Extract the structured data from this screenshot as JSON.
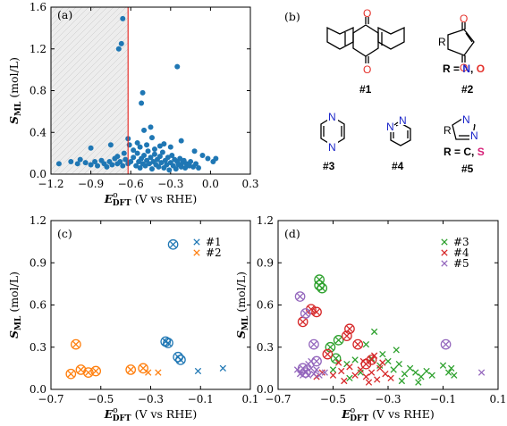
{
  "colors": {
    "blue": "#1f77b4",
    "orange": "#ff7f0e",
    "green": "#2ca02c",
    "red": "#d62728",
    "purple": "#9467bd",
    "cutoff": "#e4312b",
    "shade": "#e6e6e6",
    "atomO": "#e4312b",
    "atomN": "#1a24c9",
    "atomS": "#d61f77"
  },
  "axis_text": {
    "ylabel_main": "S",
    "ylabel_sub": "ML",
    "ylabel_unit": " (mol/L)",
    "xlabel_main": "E",
    "xlabel_sup": "o",
    "xlabel_sub": "DFT",
    "xlabel_unit": " (V vs RHE)"
  },
  "panels": {
    "a": "(a)",
    "b": "(b)",
    "c": "(c)",
    "d": "(d)"
  },
  "molecules": {
    "m1": {
      "label": "#1",
      "atom": "O"
    },
    "m2": {
      "label": "#2",
      "atom": "O",
      "sub": "R",
      "r_text": "R = ",
      "r_n": "N",
      "r_comma": ", ",
      "r_o": "O"
    },
    "m3": {
      "label": "#3",
      "atom": "N"
    },
    "m4": {
      "label": "#4",
      "atom": "N"
    },
    "m5": {
      "label": "#5",
      "atom": "N",
      "sub": "R",
      "r_text": "R = C, ",
      "r_s": "S"
    }
  },
  "chart_data": [
    {
      "panel": "a",
      "type": "scatter",
      "xlim": [
        -1.2,
        0.3
      ],
      "ylim": [
        0,
        1.6
      ],
      "xticks": [
        -1.2,
        -0.9,
        -0.6,
        -0.3,
        0.0,
        0.3
      ],
      "xtick_labels": [
        "−1.2",
        "−0.9",
        "−0.6",
        "−0.3",
        "0.0",
        "0.3"
      ],
      "yticks": [
        0.0,
        0.4,
        0.8,
        1.2,
        1.6
      ],
      "ytick_labels": [
        "0.0",
        "0.4",
        "0.8",
        "1.2",
        "1.6"
      ],
      "cutoff_x": -0.62,
      "shaded_range": [
        -1.2,
        -0.62
      ],
      "series": [
        {
          "color": "blue",
          "marker": "dot",
          "points": [
            [
              -1.14,
              0.1
            ],
            [
              -0.66,
              1.49
            ],
            [
              -0.67,
              1.25
            ],
            [
              -0.69,
              1.2
            ],
            [
              -0.25,
              1.03
            ],
            [
              -0.51,
              0.78
            ],
            [
              -0.52,
              0.68
            ],
            [
              -0.45,
              0.45
            ],
            [
              -0.5,
              0.42
            ],
            [
              -0.44,
              0.35
            ],
            [
              -0.62,
              0.34
            ],
            [
              -0.9,
              0.25
            ],
            [
              -0.75,
              0.28
            ],
            [
              -0.61,
              0.28
            ],
            [
              -0.53,
              0.26
            ],
            [
              -0.38,
              0.27
            ],
            [
              -0.3,
              0.26
            ],
            [
              -0.22,
              0.32
            ],
            [
              -0.12,
              0.22
            ],
            [
              -0.06,
              0.18
            ],
            [
              -0.02,
              0.15
            ],
            [
              0.02,
              0.12
            ],
            [
              0.04,
              0.15
            ],
            [
              -1.05,
              0.12
            ],
            [
              -1.0,
              0.1
            ],
            [
              -0.98,
              0.14
            ],
            [
              -0.94,
              0.11
            ],
            [
              -0.9,
              0.09
            ],
            [
              -0.87,
              0.12
            ],
            [
              -0.85,
              0.08
            ],
            [
              -0.82,
              0.13
            ],
            [
              -0.8,
              0.1
            ],
            [
              -0.78,
              0.07
            ],
            [
              -0.76,
              0.12
            ],
            [
              -0.74,
              0.09
            ],
            [
              -0.72,
              0.15
            ],
            [
              -0.7,
              0.1
            ],
            [
              -0.68,
              0.12
            ],
            [
              -0.66,
              0.08
            ],
            [
              -0.64,
              0.14
            ],
            [
              -0.62,
              0.1
            ],
            [
              -0.6,
              0.12
            ],
            [
              -0.58,
              0.16
            ],
            [
              -0.56,
              0.08
            ],
            [
              -0.55,
              0.2
            ],
            [
              -0.54,
              0.12
            ],
            [
              -0.53,
              0.06
            ],
            [
              -0.52,
              0.15
            ],
            [
              -0.51,
              0.1
            ],
            [
              -0.5,
              0.18
            ],
            [
              -0.49,
              0.08
            ],
            [
              -0.48,
              0.13
            ],
            [
              -0.47,
              0.22
            ],
            [
              -0.46,
              0.1
            ],
            [
              -0.45,
              0.16
            ],
            [
              -0.44,
              0.05
            ],
            [
              -0.43,
              0.12
            ],
            [
              -0.42,
              0.19
            ],
            [
              -0.41,
              0.09
            ],
            [
              -0.4,
              0.14
            ],
            [
              -0.39,
              0.07
            ],
            [
              -0.38,
              0.17
            ],
            [
              -0.37,
              0.11
            ],
            [
              -0.36,
              0.21
            ],
            [
              -0.35,
              0.06
            ],
            [
              -0.34,
              0.13
            ],
            [
              -0.33,
              0.09
            ],
            [
              -0.32,
              0.16
            ],
            [
              -0.31,
              0.04
            ],
            [
              -0.3,
              0.11
            ],
            [
              -0.29,
              0.18
            ],
            [
              -0.28,
              0.08
            ],
            [
              -0.27,
              0.14
            ],
            [
              -0.26,
              0.05
            ],
            [
              -0.25,
              0.12
            ],
            [
              -0.24,
              0.09
            ],
            [
              -0.23,
              0.15
            ],
            [
              -0.22,
              0.07
            ],
            [
              -0.21,
              0.11
            ],
            [
              -0.2,
              0.13
            ],
            [
              -0.19,
              0.06
            ],
            [
              -0.18,
              0.1
            ],
            [
              -0.16,
              0.08
            ],
            [
              -0.15,
              0.12
            ],
            [
              -0.13,
              0.07
            ],
            [
              -0.11,
              0.1
            ],
            [
              -0.09,
              0.06
            ],
            [
              -0.55,
              0.3
            ],
            [
              -0.58,
              0.23
            ],
            [
              -0.48,
              0.28
            ],
            [
              -0.42,
              0.24
            ],
            [
              -0.35,
              0.29
            ],
            [
              -0.65,
              0.2
            ],
            [
              -0.7,
              0.17
            ]
          ]
        }
      ]
    },
    {
      "panel": "c",
      "type": "scatter",
      "xlim": [
        -0.7,
        0.1
      ],
      "ylim": [
        0,
        1.2
      ],
      "xticks": [
        -0.7,
        -0.5,
        -0.3,
        -0.1,
        0.1
      ],
      "xtick_labels": [
        "−0.7",
        "−0.5",
        "−0.3",
        "−0.1",
        "0.1"
      ],
      "yticks": [
        0.0,
        0.3,
        0.6,
        0.9,
        1.2
      ],
      "ytick_labels": [
        "0.0",
        "0.3",
        "0.6",
        "0.9",
        "1.2"
      ],
      "series": [
        {
          "name": "#1",
          "color": "blue",
          "points": [
            [
              -0.21,
              1.03,
              1
            ],
            [
              -0.24,
              0.34,
              1
            ],
            [
              -0.23,
              0.33,
              1
            ],
            [
              -0.19,
              0.23,
              1
            ],
            [
              -0.18,
              0.21,
              1
            ],
            [
              -0.11,
              0.13,
              0
            ],
            [
              -0.01,
              0.15,
              0
            ]
          ]
        },
        {
          "name": "#2",
          "color": "orange",
          "points": [
            [
              -0.6,
              0.32,
              1
            ],
            [
              -0.58,
              0.14,
              1
            ],
            [
              -0.62,
              0.11,
              1
            ],
            [
              -0.55,
              0.12,
              1
            ],
            [
              -0.52,
              0.13,
              1
            ],
            [
              -0.38,
              0.14,
              1
            ],
            [
              -0.33,
              0.15,
              1
            ],
            [
              -0.31,
              0.12,
              0
            ],
            [
              -0.27,
              0.12,
              0
            ]
          ]
        }
      ]
    },
    {
      "panel": "d",
      "type": "scatter",
      "xlim": [
        -0.7,
        0.1
      ],
      "ylim": [
        0,
        1.2
      ],
      "xticks": [
        -0.7,
        -0.5,
        -0.3,
        -0.1,
        0.1
      ],
      "xtick_labels": [
        "−0.7",
        "−0.5",
        "−0.3",
        "−0.1",
        "0.1"
      ],
      "yticks": [
        0.0,
        0.3,
        0.6,
        0.9,
        1.2
      ],
      "ytick_labels": [
        "0.0",
        "0.3",
        "0.6",
        "0.9",
        "1.2"
      ],
      "series": [
        {
          "name": "#3",
          "color": "green",
          "points": [
            [
              -0.55,
              0.78,
              1
            ],
            [
              -0.55,
              0.74,
              1
            ],
            [
              -0.54,
              0.72,
              1
            ],
            [
              -0.48,
              0.35,
              1
            ],
            [
              -0.51,
              0.3,
              1
            ],
            [
              -0.49,
              0.22,
              1
            ],
            [
              -0.35,
              0.41,
              0
            ],
            [
              -0.38,
              0.32,
              0
            ],
            [
              -0.32,
              0.25,
              0
            ],
            [
              -0.3,
              0.2,
              0
            ],
            [
              -0.28,
              0.14,
              0
            ],
            [
              -0.26,
              0.18,
              0
            ],
            [
              -0.24,
              0.11,
              0
            ],
            [
              -0.22,
              0.15,
              0
            ],
            [
              -0.2,
              0.12,
              0
            ],
            [
              -0.18,
              0.09,
              0
            ],
            [
              -0.16,
              0.13,
              0
            ],
            [
              -0.14,
              0.1,
              0
            ],
            [
              -0.27,
              0.28,
              0
            ],
            [
              -0.33,
              0.17,
              0
            ],
            [
              -0.36,
              0.22,
              0
            ],
            [
              -0.42,
              0.21,
              0
            ],
            [
              -0.45,
              0.18,
              0
            ],
            [
              -0.4,
              0.12,
              0
            ],
            [
              -0.1,
              0.17,
              0
            ],
            [
              -0.08,
              0.12,
              0
            ],
            [
              -0.07,
              0.15,
              0
            ],
            [
              -0.06,
              0.1,
              0
            ],
            [
              -0.25,
              0.06,
              0
            ],
            [
              -0.19,
              0.05,
              0
            ],
            [
              -0.5,
              0.14,
              0
            ],
            [
              -0.44,
              0.08,
              0
            ]
          ]
        },
        {
          "name": "#4",
          "color": "red",
          "points": [
            [
              -0.61,
              0.48,
              1
            ],
            [
              -0.58,
              0.57,
              1
            ],
            [
              -0.56,
              0.55,
              1
            ],
            [
              -0.44,
              0.43,
              1
            ],
            [
              -0.45,
              0.38,
              1
            ],
            [
              -0.41,
              0.32,
              1
            ],
            [
              -0.52,
              0.25,
              1
            ],
            [
              -0.36,
              0.21,
              1
            ],
            [
              -0.38,
              0.18,
              1
            ],
            [
              -0.47,
              0.13,
              0
            ],
            [
              -0.44,
              0.16,
              0
            ],
            [
              -0.42,
              0.1,
              0
            ],
            [
              -0.4,
              0.14,
              0
            ],
            [
              -0.38,
              0.09,
              0
            ],
            [
              -0.36,
              0.12,
              0
            ],
            [
              -0.34,
              0.07,
              0
            ],
            [
              -0.33,
              0.15,
              0
            ],
            [
              -0.31,
              0.11,
              0
            ],
            [
              -0.29,
              0.08,
              0
            ],
            [
              -0.35,
              0.24,
              0
            ],
            [
              -0.39,
              0.2,
              0
            ],
            [
              -0.5,
              0.1,
              0
            ],
            [
              -0.48,
              0.19,
              0
            ],
            [
              -0.54,
              0.12,
              0
            ],
            [
              -0.56,
              0.09,
              0
            ],
            [
              -0.46,
              0.06,
              0
            ],
            [
              -0.37,
              0.05,
              0
            ],
            [
              -0.32,
              0.19,
              0
            ]
          ]
        },
        {
          "name": "#5",
          "color": "purple",
          "points": [
            [
              -0.62,
              0.66,
              1
            ],
            [
              -0.6,
              0.54,
              1
            ],
            [
              -0.57,
              0.32,
              1
            ],
            [
              -0.56,
              0.2,
              1
            ],
            [
              -0.61,
              0.15,
              1
            ],
            [
              -0.6,
              0.12,
              1
            ],
            [
              -0.09,
              0.32,
              1
            ],
            [
              -0.63,
              0.14,
              0
            ],
            [
              -0.62,
              0.11,
              0
            ],
            [
              -0.61,
              0.1,
              0
            ],
            [
              -0.6,
              0.13,
              0
            ],
            [
              -0.59,
              0.1,
              0
            ],
            [
              -0.58,
              0.15,
              0
            ],
            [
              -0.57,
              0.11,
              0
            ],
            [
              -0.56,
              0.14,
              0
            ],
            [
              -0.55,
              0.1,
              0
            ],
            [
              -0.58,
              0.2,
              0
            ],
            [
              -0.53,
              0.12,
              0
            ],
            [
              -0.59,
              0.18,
              0
            ],
            [
              0.04,
              0.12,
              0
            ]
          ]
        }
      ]
    }
  ]
}
